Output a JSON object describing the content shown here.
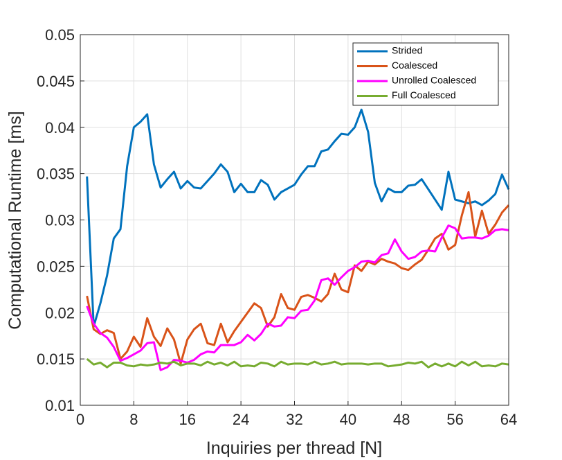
{
  "chart_data": {
    "type": "line",
    "xlabel": "Inquiries per thread [N]",
    "ylabel": "Computational Runtime [ms]",
    "x": [
      1,
      2,
      3,
      4,
      5,
      6,
      7,
      8,
      9,
      10,
      11,
      12,
      13,
      14,
      15,
      16,
      17,
      18,
      19,
      20,
      21,
      22,
      23,
      24,
      25,
      26,
      27,
      28,
      29,
      30,
      31,
      32,
      33,
      34,
      35,
      36,
      37,
      38,
      39,
      40,
      41,
      42,
      43,
      44,
      45,
      46,
      47,
      48,
      49,
      50,
      51,
      52,
      53,
      54,
      55,
      56,
      57,
      58,
      59,
      60,
      61,
      62,
      63,
      64
    ],
    "xlim": [
      0,
      64
    ],
    "xticks": [
      0,
      8,
      16,
      24,
      32,
      40,
      48,
      56,
      64
    ],
    "ylim": [
      0.01,
      0.05
    ],
    "yticks": [
      0.01,
      0.015,
      0.02,
      0.025,
      0.03,
      0.035,
      0.04,
      0.045,
      0.05
    ],
    "grid": true,
    "legend_location": "northeast",
    "series": [
      {
        "name": "Strided",
        "color": "#0072bd",
        "values": [
          0.0347,
          0.0185,
          0.021,
          0.024,
          0.028,
          0.029,
          0.0358,
          0.04,
          0.0406,
          0.0414,
          0.036,
          0.0335,
          0.0344,
          0.0352,
          0.0334,
          0.0342,
          0.0335,
          0.0334,
          0.0342,
          0.035,
          0.036,
          0.0352,
          0.033,
          0.0339,
          0.033,
          0.033,
          0.0343,
          0.0338,
          0.0322,
          0.033,
          0.0334,
          0.0338,
          0.0349,
          0.0358,
          0.0358,
          0.0374,
          0.0376,
          0.0385,
          0.0393,
          0.0392,
          0.04,
          0.0419,
          0.0395,
          0.034,
          0.032,
          0.0334,
          0.033,
          0.033,
          0.0337,
          0.0338,
          0.0344,
          0.0333,
          0.0322,
          0.0311,
          0.0352,
          0.0322,
          0.032,
          0.0318,
          0.032,
          0.0316,
          0.0321,
          0.0328,
          0.0349,
          0.0333
        ]
      },
      {
        "name": "Coalesced",
        "color": "#d95319",
        "values": [
          0.0218,
          0.0182,
          0.0177,
          0.0181,
          0.0178,
          0.015,
          0.0158,
          0.0174,
          0.0163,
          0.0194,
          0.0174,
          0.0164,
          0.0183,
          0.0171,
          0.0145,
          0.0171,
          0.0182,
          0.0188,
          0.0167,
          0.0165,
          0.0188,
          0.0168,
          0.018,
          0.019,
          0.02,
          0.021,
          0.0205,
          0.0185,
          0.0195,
          0.022,
          0.0205,
          0.0203,
          0.0217,
          0.0219,
          0.0216,
          0.0212,
          0.022,
          0.0242,
          0.0225,
          0.0222,
          0.0251,
          0.0245,
          0.0255,
          0.0252,
          0.0258,
          0.0255,
          0.0253,
          0.0248,
          0.0246,
          0.0252,
          0.0257,
          0.0268,
          0.028,
          0.0285,
          0.0268,
          0.0273,
          0.0305,
          0.033,
          0.0282,
          0.031,
          0.0285,
          0.0295,
          0.0308,
          0.0316
        ]
      },
      {
        "name": "Unrolled Coalesced",
        "color": "#ff00ff",
        "values": [
          0.0207,
          0.0188,
          0.0178,
          0.0173,
          0.0163,
          0.0148,
          0.0151,
          0.0155,
          0.0159,
          0.0167,
          0.0168,
          0.0138,
          0.0141,
          0.0149,
          0.0148,
          0.0146,
          0.0149,
          0.0155,
          0.0158,
          0.0157,
          0.0165,
          0.0165,
          0.0165,
          0.0168,
          0.0176,
          0.017,
          0.0177,
          0.0188,
          0.0185,
          0.0186,
          0.0195,
          0.0194,
          0.0202,
          0.0203,
          0.0213,
          0.0235,
          0.0237,
          0.023,
          0.0238,
          0.0245,
          0.0249,
          0.0255,
          0.0256,
          0.0254,
          0.0262,
          0.0264,
          0.0279,
          0.0266,
          0.0258,
          0.026,
          0.0266,
          0.0267,
          0.0266,
          0.0281,
          0.0294,
          0.0291,
          0.028,
          0.0281,
          0.0281,
          0.028,
          0.0283,
          0.0289,
          0.029,
          0.0289
        ]
      },
      {
        "name": "Full Coalesced",
        "color": "#77ac30",
        "values": [
          0.015,
          0.0144,
          0.0146,
          0.0141,
          0.0146,
          0.0146,
          0.0143,
          0.0142,
          0.0144,
          0.0143,
          0.0144,
          0.0146,
          0.0145,
          0.0147,
          0.0143,
          0.0145,
          0.0145,
          0.0143,
          0.0147,
          0.0144,
          0.0146,
          0.0143,
          0.0147,
          0.0142,
          0.0143,
          0.0142,
          0.0146,
          0.0145,
          0.0142,
          0.0147,
          0.0144,
          0.0145,
          0.0145,
          0.0144,
          0.0147,
          0.0144,
          0.0145,
          0.0147,
          0.0144,
          0.0145,
          0.0145,
          0.0145,
          0.0144,
          0.0145,
          0.0145,
          0.0142,
          0.0143,
          0.0144,
          0.0146,
          0.0145,
          0.0147,
          0.0141,
          0.0145,
          0.0142,
          0.0145,
          0.0142,
          0.0147,
          0.0143,
          0.0147,
          0.0142,
          0.0143,
          0.0142,
          0.0145,
          0.0144
        ]
      }
    ]
  }
}
